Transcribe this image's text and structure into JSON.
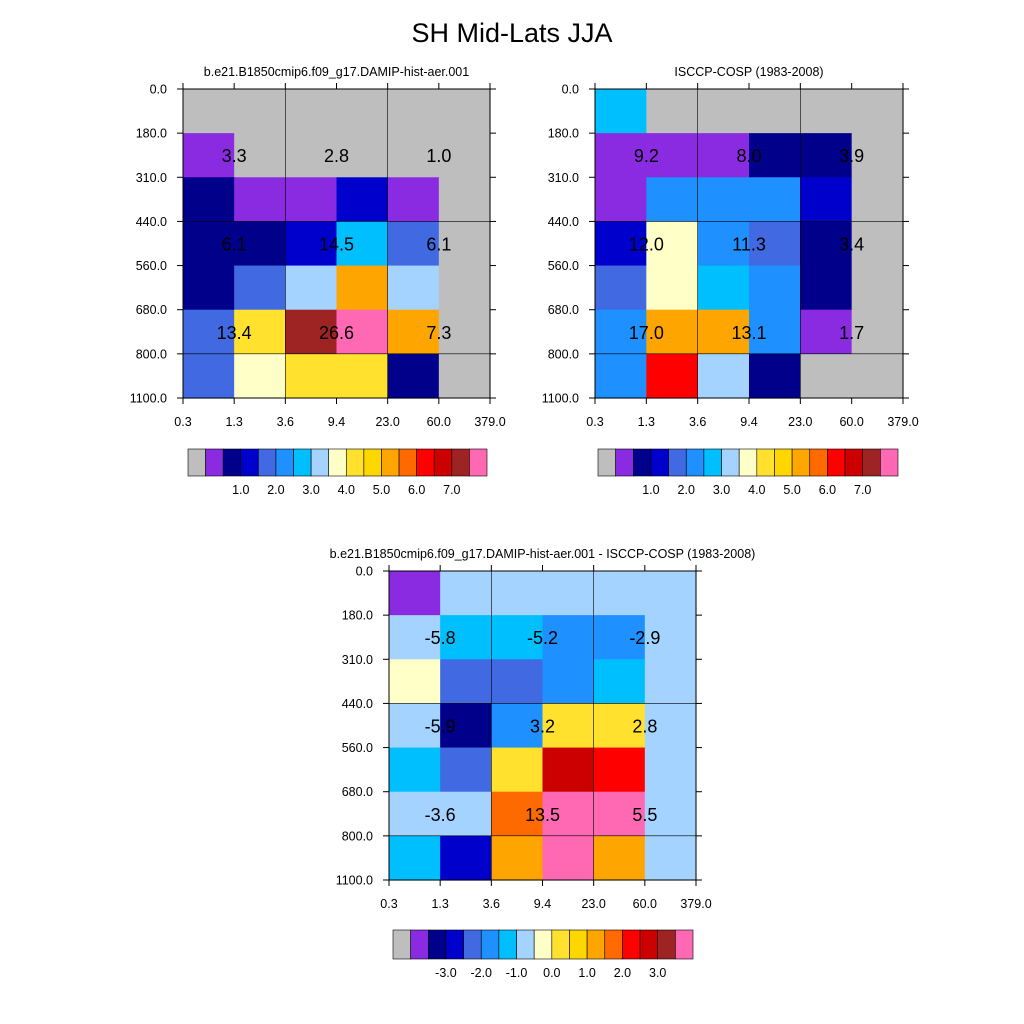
{
  "title": "SH Mid-Lats JJA",
  "chart_data": [
    {
      "type": "heatmap",
      "subtitle": "b.e21.B1850cmip6.f09_g17.DAMIP-hist-aer.001",
      "x_ticks": [
        "0.3",
        "1.3",
        "3.6",
        "9.4",
        "23.0",
        "60.0",
        "379.0"
      ],
      "y_ticks": [
        "0.0",
        "180.0",
        "310.0",
        "440.0",
        "560.0",
        "680.0",
        "800.0",
        "1100.0"
      ],
      "cell_colors": [
        [
          "#BEBEBE",
          "#BEBEBE",
          "#BEBEBE",
          "#BEBEBE",
          "#BEBEBE",
          "#BEBEBE"
        ],
        [
          "#8A2BE2",
          "#BEBEBE",
          "#BEBEBE",
          "#BEBEBE",
          "#BEBEBE",
          "#BEBEBE"
        ],
        [
          "#00008B",
          "#8A2BE2",
          "#8A2BE2",
          "#0000CD",
          "#8A2BE2",
          "#BEBEBE"
        ],
        [
          "#00008B",
          "#00008B",
          "#0000CD",
          "#00BFFF",
          "#4169E1",
          "#BEBEBE"
        ],
        [
          "#00008B",
          "#4169E1",
          "#A4D3FF",
          "#FFA500",
          "#A4D3FF",
          "#BEBEBE"
        ],
        [
          "#4169E1",
          "#FFE12E",
          "#9E2323",
          "#FF69B4",
          "#FFA500",
          "#BEBEBE"
        ],
        [
          "#4169E1",
          "#FFFFC8",
          "#FFE12E",
          "#FFE12E",
          "#00008B",
          "#BEBEBE"
        ]
      ],
      "labels": [
        {
          "row": 1,
          "col": 1,
          "text": "3.3"
        },
        {
          "row": 1,
          "col": 3,
          "text": "2.8"
        },
        {
          "row": 1,
          "col": 5,
          "text": "1.0"
        },
        {
          "row": 3,
          "col": 1,
          "text": "6.1"
        },
        {
          "row": 3,
          "col": 3,
          "text": "14.5"
        },
        {
          "row": 3,
          "col": 5,
          "text": "6.1"
        },
        {
          "row": 5,
          "col": 1,
          "text": "13.4"
        },
        {
          "row": 5,
          "col": 3,
          "text": "26.6"
        },
        {
          "row": 5,
          "col": 5,
          "text": "7.3"
        }
      ],
      "colorbar": {
        "colors": [
          "#BEBEBE",
          "#8A2BE2",
          "#00008B",
          "#0000CD",
          "#4169E1",
          "#1E90FF",
          "#00BFFF",
          "#A4D3FF",
          "#FFFFC8",
          "#FFE12E",
          "#FFD700",
          "#FFA500",
          "#FF6A00",
          "#FF0000",
          "#CD0000",
          "#9E2323",
          "#FF69B4"
        ],
        "labels": [
          "1.0",
          "2.0",
          "3.0",
          "4.0",
          "5.0",
          "6.0",
          "7.0"
        ],
        "label_start": 2,
        "label_step": 2
      }
    },
    {
      "type": "heatmap",
      "subtitle": "ISCCP-COSP (1983-2008)",
      "x_ticks": [
        "0.3",
        "1.3",
        "3.6",
        "9.4",
        "23.0",
        "60.0",
        "379.0"
      ],
      "y_ticks": [
        "0.0",
        "180.0",
        "310.0",
        "440.0",
        "560.0",
        "680.0",
        "800.0",
        "1100.0"
      ],
      "cell_colors": [
        [
          "#00BFFF",
          "#BEBEBE",
          "#BEBEBE",
          "#BEBEBE",
          "#BEBEBE",
          "#BEBEBE"
        ],
        [
          "#8A2BE2",
          "#8A2BE2",
          "#8A2BE2",
          "#00008B",
          "#00008B",
          "#BEBEBE"
        ],
        [
          "#8A2BE2",
          "#1E90FF",
          "#1E90FF",
          "#1E90FF",
          "#0000CD",
          "#BEBEBE"
        ],
        [
          "#0000CD",
          "#FFFFC8",
          "#1E90FF",
          "#4169E1",
          "#00008B",
          "#BEBEBE"
        ],
        [
          "#4169E1",
          "#FFFFC8",
          "#00BFFF",
          "#1E90FF",
          "#00008B",
          "#BEBEBE"
        ],
        [
          "#1E90FF",
          "#FFA500",
          "#FFA500",
          "#1E90FF",
          "#8A2BE2",
          "#BEBEBE"
        ],
        [
          "#1E90FF",
          "#FF0000",
          "#A4D3FF",
          "#00008B",
          "#BEBEBE",
          "#BEBEBE"
        ]
      ],
      "labels": [
        {
          "row": 1,
          "col": 1,
          "text": "9.2"
        },
        {
          "row": 1,
          "col": 3,
          "text": "8.0"
        },
        {
          "row": 1,
          "col": 5,
          "text": "3.9"
        },
        {
          "row": 3,
          "col": 1,
          "text": "12.0"
        },
        {
          "row": 3,
          "col": 3,
          "text": "11.3"
        },
        {
          "row": 3,
          "col": 5,
          "text": "3.4"
        },
        {
          "row": 5,
          "col": 1,
          "text": "17.0"
        },
        {
          "row": 5,
          "col": 3,
          "text": "13.1"
        },
        {
          "row": 5,
          "col": 5,
          "text": "1.7"
        }
      ],
      "colorbar": {
        "colors": [
          "#BEBEBE",
          "#8A2BE2",
          "#00008B",
          "#0000CD",
          "#4169E1",
          "#1E90FF",
          "#00BFFF",
          "#A4D3FF",
          "#FFFFC8",
          "#FFE12E",
          "#FFD700",
          "#FFA500",
          "#FF6A00",
          "#FF0000",
          "#CD0000",
          "#9E2323",
          "#FF69B4"
        ],
        "labels": [
          "1.0",
          "2.0",
          "3.0",
          "4.0",
          "5.0",
          "6.0",
          "7.0"
        ],
        "label_start": 2,
        "label_step": 2
      }
    },
    {
      "type": "heatmap",
      "subtitle": "b.e21.B1850cmip6.f09_g17.DAMIP-hist-aer.001 - ISCCP-COSP (1983-2008)",
      "x_ticks": [
        "0.3",
        "1.3",
        "3.6",
        "9.4",
        "23.0",
        "60.0",
        "379.0"
      ],
      "y_ticks": [
        "0.0",
        "180.0",
        "310.0",
        "440.0",
        "560.0",
        "680.0",
        "800.0",
        "1100.0"
      ],
      "cell_colors": [
        [
          "#8A2BE2",
          "#A4D3FF",
          "#A4D3FF",
          "#A4D3FF",
          "#A4D3FF",
          "#A4D3FF"
        ],
        [
          "#A4D3FF",
          "#00BFFF",
          "#00BFFF",
          "#1E90FF",
          "#1E90FF",
          "#A4D3FF"
        ],
        [
          "#FFFFC8",
          "#4169E1",
          "#4169E1",
          "#1E90FF",
          "#00BFFF",
          "#A4D3FF"
        ],
        [
          "#A4D3FF",
          "#00008B",
          "#1E90FF",
          "#FFE12E",
          "#FFE12E",
          "#A4D3FF"
        ],
        [
          "#00BFFF",
          "#4169E1",
          "#FFE12E",
          "#CD0000",
          "#FF0000",
          "#A4D3FF"
        ],
        [
          "#A4D3FF",
          "#A4D3FF",
          "#FF6A00",
          "#FF69B4",
          "#FF69B4",
          "#A4D3FF"
        ],
        [
          "#00BFFF",
          "#0000CD",
          "#FFA500",
          "#FF69B4",
          "#FFA500",
          "#A4D3FF"
        ]
      ],
      "labels": [
        {
          "row": 1,
          "col": 1,
          "text": "-5.8"
        },
        {
          "row": 1,
          "col": 3,
          "text": "-5.2"
        },
        {
          "row": 1,
          "col": 5,
          "text": "-2.9"
        },
        {
          "row": 3,
          "col": 1,
          "text": "-5.9"
        },
        {
          "row": 3,
          "col": 3,
          "text": "3.2"
        },
        {
          "row": 3,
          "col": 5,
          "text": "2.8"
        },
        {
          "row": 5,
          "col": 1,
          "text": "-3.6"
        },
        {
          "row": 5,
          "col": 3,
          "text": "13.5"
        },
        {
          "row": 5,
          "col": 5,
          "text": "5.5"
        }
      ],
      "colorbar": {
        "colors": [
          "#BEBEBE",
          "#8A2BE2",
          "#00008B",
          "#0000CD",
          "#4169E1",
          "#1E90FF",
          "#00BFFF",
          "#A4D3FF",
          "#FFFFC8",
          "#FFE12E",
          "#FFD700",
          "#FFA500",
          "#FF6A00",
          "#FF0000",
          "#CD0000",
          "#9E2323",
          "#FF69B4"
        ],
        "labels": [
          "-3.0",
          "-2.0",
          "-1.0",
          "0.0",
          "1.0",
          "2.0",
          "3.0"
        ],
        "label_start": 2,
        "label_step": 2
      }
    }
  ]
}
